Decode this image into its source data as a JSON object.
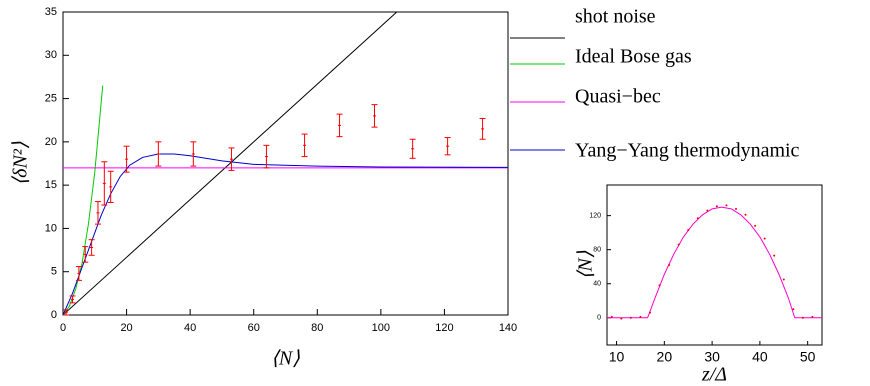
{
  "chart_data": [
    {
      "type": "line",
      "xlabel": "⟨N⟩",
      "ylabel": "⟨δN²⟩",
      "xlim": [
        0,
        140
      ],
      "ylim": [
        0,
        35
      ],
      "xticks": [
        0,
        20,
        40,
        60,
        80,
        100,
        120,
        140
      ],
      "yticks": [
        0,
        5,
        10,
        15,
        20,
        25,
        30,
        35
      ],
      "legend": "right",
      "series": [
        {
          "name": "shot noise",
          "color": "#000000",
          "mode": "lines",
          "x": [
            0,
            105
          ],
          "values": [
            0,
            35
          ]
        },
        {
          "name": "Ideal Bose gas",
          "color": "#00cc00",
          "mode": "lines",
          "x": [
            0,
            2,
            4,
            6,
            8,
            10,
            12.5
          ],
          "values": [
            0,
            1,
            3,
            6,
            10.5,
            16.5,
            26.5
          ]
        },
        {
          "name": "Quasi−bec",
          "color": "#ff00ff",
          "mode": "lines",
          "x": [
            0,
            140
          ],
          "values": [
            17,
            17
          ]
        },
        {
          "name": "Yang−Yang thermodynamic",
          "color": "#0000cc",
          "mode": "lines",
          "x": [
            0,
            3,
            6,
            9,
            12,
            15,
            18,
            21,
            25,
            30,
            35,
            40,
            50,
            60,
            80,
            100,
            140
          ],
          "values": [
            0,
            2.5,
            5.5,
            8.5,
            11.5,
            14,
            16,
            17.3,
            18.2,
            18.6,
            18.6,
            18.4,
            17.8,
            17.4,
            17.2,
            17.1,
            17.05
          ]
        },
        {
          "color": "#ff0000",
          "mode": "errorbars",
          "x": [
            1,
            3,
            5,
            7,
            9,
            11,
            13,
            15,
            20,
            30,
            41,
            53,
            64,
            76,
            87,
            98,
            110,
            121,
            132
          ],
          "values": [
            0.3,
            1.8,
            4.8,
            7,
            7.8,
            11.8,
            15.2,
            14.8,
            18,
            18.6,
            18.6,
            18,
            18.3,
            19.6,
            21.9,
            23,
            19.2,
            19.5,
            21.5
          ],
          "errors": [
            0.3,
            0.4,
            0.8,
            0.9,
            0.9,
            1.3,
            2.5,
            1.8,
            1.5,
            1.4,
            1.4,
            1.3,
            1.3,
            1.3,
            1.3,
            1.3,
            1.1,
            1,
            1.2
          ]
        }
      ]
    },
    {
      "type": "line",
      "xlabel": "z/Δ",
      "ylabel": "⟨N⟩",
      "xlim": [
        8,
        53
      ],
      "ylim": [
        -32,
        156
      ],
      "xticks": [
        10,
        20,
        30,
        40,
        50
      ],
      "yticks": [
        0,
        40,
        80,
        120
      ],
      "series": [
        {
          "color": "#ff00cc",
          "mode": "lines",
          "x": [
            8,
            16.5,
            18,
            20,
            22,
            24,
            26,
            28,
            30,
            32,
            34,
            36,
            38,
            40,
            42,
            44,
            46,
            47.3,
            53
          ],
          "values": [
            0,
            0,
            22.6,
            51,
            75,
            95,
            110,
            121,
            128,
            130,
            128,
            121,
            110,
            95,
            75,
            51,
            22.6,
            0,
            0
          ]
        },
        {
          "color": "#ff0000",
          "mode": "markers",
          "x": [
            9,
            11,
            13,
            15,
            17,
            19,
            21,
            23,
            25,
            27,
            29,
            31,
            33,
            35,
            37,
            39,
            41,
            43,
            45,
            47,
            49,
            51
          ],
          "values": [
            1,
            -1,
            0,
            1,
            6,
            38,
            62,
            86,
            103,
            117,
            126,
            131,
            132,
            128,
            121,
            108,
            93,
            73,
            45,
            10,
            0,
            1
          ]
        }
      ]
    }
  ]
}
